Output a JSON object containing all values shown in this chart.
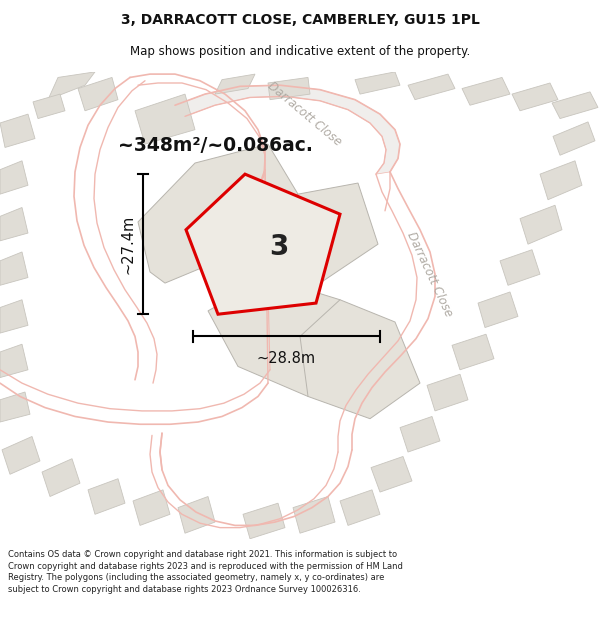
{
  "title_line1": "3, DARRACOTT CLOSE, CAMBERLEY, GU15 1PL",
  "title_line2": "Map shows position and indicative extent of the property.",
  "area_text": "~348m²/~0.086ac.",
  "number_label": "3",
  "dim_width": "~28.8m",
  "dim_height": "~27.4m",
  "road_label_top": "Darracott Close",
  "road_label_right": "Darracott Close",
  "footer_text": "Contains OS data © Crown copyright and database right 2021. This information is subject to Crown copyright and database rights 2023 and is reproduced with the permission of HM Land Registry. The polygons (including the associated geometry, namely x, y co-ordinates) are subject to Crown copyright and database rights 2023 Ordnance Survey 100026316.",
  "map_bg": "#f8f7f5",
  "building_color": "#e0ddd6",
  "building_edge": "#c8c5be",
  "road_line_color": "#f0b8b0",
  "road_fill_color": "#f5f0ee",
  "highlight_color": "#dd0000",
  "property_fill": "#ede8e0",
  "parcel_fill": "#e8e4dc",
  "parcel_edge": "#c8c4bc"
}
